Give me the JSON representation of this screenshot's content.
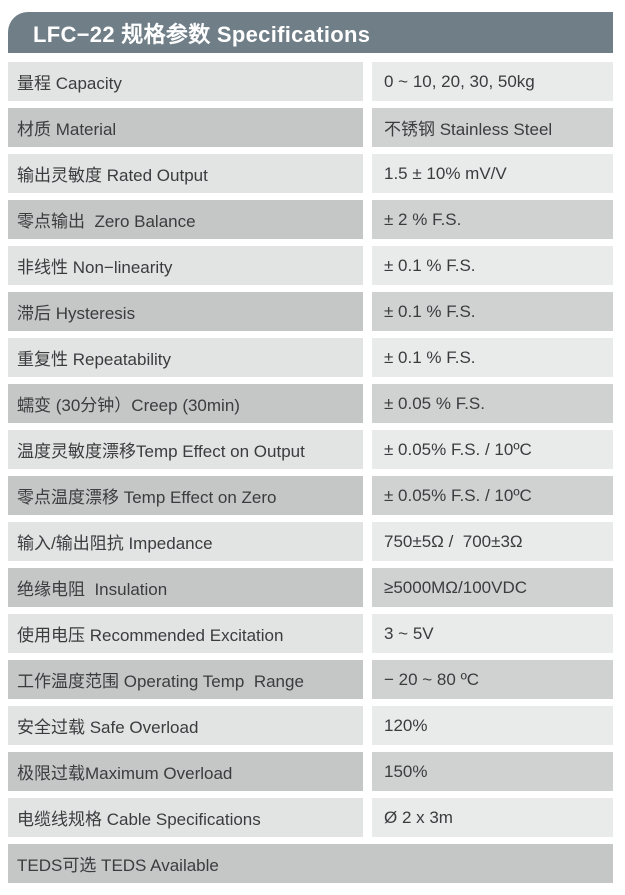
{
  "header": {
    "title": "LFC−22 规格参数 Specifications"
  },
  "colors": {
    "header_bg": "#6f7e87",
    "header_text": "#ffffff",
    "row_dark_label_bg": "#c5c7c7",
    "row_dark_value_bg": "#d0d2d2",
    "row_light_label_bg": "#e2e3e3",
    "row_light_value_bg": "#e9eaea",
    "cell_text": "#3a3c3e",
    "page_bg": "#ffffff"
  },
  "table": {
    "rows": [
      {
        "label": "量程 Capacity",
        "value": "0 ~ 10, 20, 30, 50kg"
      },
      {
        "label": "材质 Material",
        "value": "不锈钢 Stainless Steel"
      },
      {
        "label": "输出灵敏度 Rated Output",
        "value": "1.5 ± 10% mV/V"
      },
      {
        "label": "零点输出  Zero Balance",
        "value": "± 2 % F.S."
      },
      {
        "label": "非线性 Non−linearity",
        "value": "± 0.1 % F.S."
      },
      {
        "label": "滞后 Hysteresis",
        "value": "± 0.1 % F.S."
      },
      {
        "label": "重复性 Repeatability",
        "value": "± 0.1 % F.S."
      },
      {
        "label": "蠕变 (30分钟）Creep (30min)",
        "value": "± 0.05 % F.S."
      },
      {
        "label": "温度灵敏度漂移Temp Effect on Output",
        "value": "± 0.05% F.S. / 10ºC"
      },
      {
        "label": "零点温度漂移 Temp Effect on Zero",
        "value": "± 0.05% F.S. / 10ºC"
      },
      {
        "label": "输入/输出阻抗 Impedance",
        "value": "750±5Ω /  700±3Ω"
      },
      {
        "label": "绝缘电阻  Insulation",
        "value": "≥5000MΩ/100VDC"
      },
      {
        "label": "使用电压 Recommended Excitation",
        "value": "3 ~ 5V"
      },
      {
        "label": "工作温度范围 Operating Temp  Range",
        "value": "− 20 ~ 80 ºC"
      },
      {
        "label": "安全过载 Safe Overload",
        "value": "120%"
      },
      {
        "label": "极限过载Maximum Overload",
        "value": "150%"
      },
      {
        "label": "电缆线规格 Cable Specifications",
        "value": "Ø 2 x 3m"
      },
      {
        "label": "TEDS可选 TEDS Available",
        "value": ""
      }
    ]
  }
}
